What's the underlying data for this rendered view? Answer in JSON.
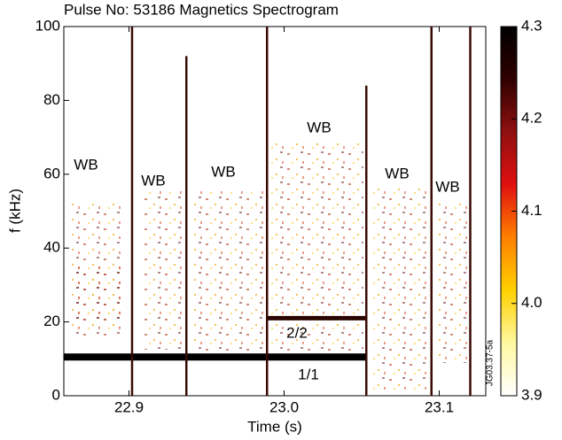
{
  "chart_data": {
    "type": "spectrogram",
    "title": "Pulse No: 53186   Magnetics Spectrogram",
    "x_label": "Time (s)",
    "y_label": "f (kHz)",
    "xlim": [
      22.858,
      23.13
    ],
    "xticks": [
      22.9,
      {
        "value": 23.0,
        "label": "23.0"
      },
      23.1
    ],
    "ylim": [
      0,
      100
    ],
    "yticks": [
      0,
      20,
      40,
      60,
      80,
      100
    ],
    "colorbar": {
      "lim": [
        3.9,
        4.3
      ],
      "ticks": [
        3.9,
        {
          "value": 4.0,
          "label": "4.0"
        },
        4.1,
        4.2,
        4.3
      ],
      "colors": [
        "#ffffff",
        "#fff8a0",
        "#ffd000",
        "#ff8000",
        "#e01010",
        "#901010",
        "#300000",
        "#000000"
      ]
    },
    "crashes": {
      "x": [
        22.902,
        22.937,
        22.989,
        23.053,
        23.095,
        23.12
      ],
      "values": [
        100,
        92,
        100,
        84,
        100,
        100
      ],
      "color": "#3a0a05"
    },
    "modes": [
      {
        "label": "1/1",
        "x": [
          22.858,
          23.053
        ],
        "values": [
          10.5,
          10.5
        ],
        "color": "#000000"
      },
      {
        "label": "2/2",
        "x": [
          22.989,
          23.053
        ],
        "values": [
          21,
          21
        ],
        "color": "#2a0500"
      }
    ],
    "annotations": [
      "WB",
      "WB",
      "WB",
      "WB",
      "WB",
      "WB"
    ],
    "figure_id": "JG03.37-5a"
  }
}
